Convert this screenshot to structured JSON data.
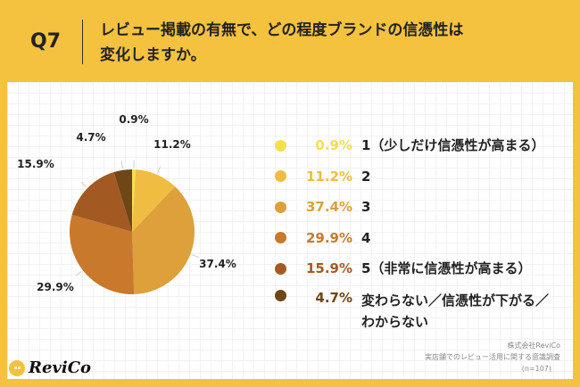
{
  "header": {
    "question": "Q7",
    "title_line1": "レビュー掲載の有無で、どの程度ブランドの信憑性は",
    "title_line2": "変化しますか。"
  },
  "chart_data": {
    "type": "pie",
    "categories": [
      "1（少しだけ信憑性が高まる）",
      "2",
      "3",
      "4",
      "5（非常に信憑性が高まる）",
      "変わらない／信憑性が下がる／わからない"
    ],
    "legend_line1": [
      "1（少しだけ信憑性が高まる）",
      "2",
      "3",
      "4",
      "5（非常に信憑性が高まる）",
      "変わらない／信憑性が下がる／"
    ],
    "legend_line2": [
      "",
      "",
      "",
      "",
      "",
      "わからない"
    ],
    "values": [
      0.9,
      11.2,
      37.4,
      29.9,
      15.9,
      4.7
    ],
    "labels": [
      "0.9%",
      "11.2%",
      "37.4%",
      "29.9%",
      "15.9%",
      "4.7%"
    ],
    "colors": [
      "#f5df4d",
      "#f0bd42",
      "#dda03a",
      "#c9792c",
      "#a35a22",
      "#6f4616"
    ],
    "legend_placement": "right"
  },
  "footer": {
    "company": "株式会社ReviCo",
    "survey": "実店舗でのレビュー活用に関する意識調査",
    "n": "(n=107)",
    "logo": "ReviCo"
  }
}
